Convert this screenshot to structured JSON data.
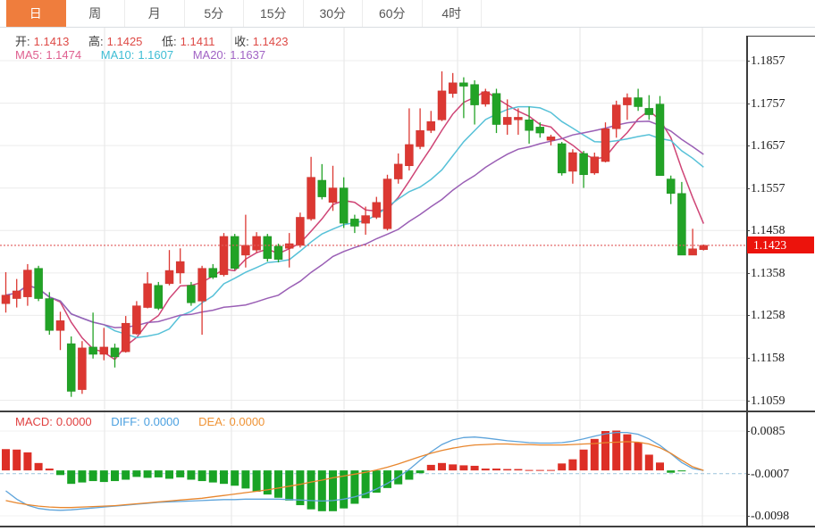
{
  "tabs": {
    "items": [
      {
        "label": "日",
        "active": true
      },
      {
        "label": "周",
        "active": false
      },
      {
        "label": "月",
        "active": false
      },
      {
        "label": "5分",
        "active": false
      },
      {
        "label": "15分",
        "active": false
      },
      {
        "label": "30分",
        "active": false
      },
      {
        "label": "60分",
        "active": false
      },
      {
        "label": "4时",
        "active": false
      }
    ],
    "active_color": "#ef7d3d"
  },
  "legend": {
    "ohlc": [
      {
        "label": "开:",
        "value": "1.1413"
      },
      {
        "label": "高:",
        "value": "1.1425"
      },
      {
        "label": "低:",
        "value": "1.1411"
      },
      {
        "label": "收:",
        "value": "1.1423"
      }
    ],
    "ohlc_value_color": "#de4a46",
    "ma": [
      {
        "label": "MA5:",
        "value": "1.1474",
        "color": "#df5f8f"
      },
      {
        "label": "MA10:",
        "value": "1.1607",
        "color": "#3ebdd4"
      },
      {
        "label": "MA20:",
        "value": "1.1637",
        "color": "#a163c4"
      }
    ],
    "macd": [
      {
        "label": "MACD:",
        "value": "0.0000",
        "color": "#e04040"
      },
      {
        "label": "DIFF:",
        "value": "0.0000",
        "color": "#4ba0e0"
      },
      {
        "label": "DEA:",
        "value": "0.0000",
        "color": "#ef9335"
      }
    ]
  },
  "axes": {
    "price": [
      "1.1857",
      "1.1757",
      "1.1657",
      "1.1557",
      "1.1458",
      "1.1358",
      "1.1258",
      "1.1158",
      "1.1059"
    ],
    "macd": [
      "0.0085",
      "-0.0007",
      "-0.0098"
    ]
  },
  "price_tag": {
    "text": "1.1423",
    "bg": "#ec130c"
  },
  "colors": {
    "up": "#dc3832",
    "down": "#22a326",
    "up_stroke": "#c8342e",
    "down_stroke": "#1d8f21",
    "ma5": "#cf4576",
    "ma10": "#57c1d8",
    "ma20": "#9a5fb5",
    "hist_up": "#dd2f26",
    "hist_down": "#19a325",
    "diff_line": "#5ea4db",
    "dea_line": "#e8862d",
    "current_price_line": "#e05a5a",
    "zero_dash_line": "#9cc3dc",
    "grid_h": "#ececec",
    "grid_v": "#e6e6e6"
  },
  "chart_data": {
    "type": "candlestick",
    "title": "",
    "legend_position": "top-left",
    "grid": true,
    "panels": [
      {
        "name": "price",
        "type": "candlestick",
        "ylim": [
          1.1059,
          1.1857
        ],
        "yticks": [
          1.1857,
          1.1757,
          1.1657,
          1.1557,
          1.1458,
          1.1358,
          1.1258,
          1.1158,
          1.1059
        ],
        "current_price": 1.1423,
        "overlays": [
          {
            "name": "MA5",
            "period": 5,
            "last": 1.1474
          },
          {
            "name": "MA10",
            "period": 10,
            "last": 1.1607
          },
          {
            "name": "MA20",
            "period": 20,
            "last": 1.1637
          }
        ],
        "candles": {
          "open": [
            1.1286,
            1.1298,
            1.1302,
            1.1369,
            1.1298,
            1.1223,
            1.1192,
            1.1084,
            1.1184,
            1.1167,
            1.1182,
            1.1173,
            1.1215,
            1.1277,
            1.1329,
            1.1333,
            1.1358,
            1.1329,
            1.1292,
            1.1369,
            1.1354,
            1.1444,
            1.14,
            1.1412,
            1.1444,
            1.1421,
            1.1416,
            1.1423,
            1.1485,
            1.1576,
            1.1524,
            1.1558,
            1.1485,
            1.1475,
            1.1489,
            1.1462,
            1.1579,
            1.161,
            1.1655,
            1.1693,
            1.1718,
            1.178,
            1.1805,
            1.1801,
            1.1755,
            1.178,
            1.1707,
            1.1718,
            1.1718,
            1.1701,
            1.167,
            1.1662,
            1.1597,
            1.1639,
            1.1593,
            1.162,
            1.1697,
            1.1753,
            1.177,
            1.1745,
            1.1755,
            1.1579,
            1.1545,
            1.14,
            1.1413
          ],
          "high": [
            1.136,
            1.1344,
            1.1379,
            1.1375,
            1.1313,
            1.1267,
            1.1209,
            1.1198,
            1.1265,
            1.1229,
            1.1192,
            1.1257,
            1.1292,
            1.136,
            1.1337,
            1.1412,
            1.1416,
            1.1337,
            1.1375,
            1.1379,
            1.1452,
            1.145,
            1.1495,
            1.1454,
            1.145,
            1.1427,
            1.1452,
            1.15,
            1.1631,
            1.1614,
            1.161,
            1.1583,
            1.1495,
            1.1514,
            1.1537,
            1.1589,
            1.1639,
            1.1745,
            1.1745,
            1.1739,
            1.1832,
            1.1828,
            1.1818,
            1.1811,
            1.1791,
            1.1791,
            1.1766,
            1.1745,
            1.1749,
            1.1712,
            1.1683,
            1.1666,
            1.1649,
            1.1645,
            1.1641,
            1.1712,
            1.1763,
            1.178,
            1.1791,
            1.1776,
            1.1774,
            1.1587,
            1.1572,
            1.1462,
            1.1425
          ],
          "low": [
            1.1265,
            1.1277,
            1.1281,
            1.1292,
            1.1213,
            1.1177,
            1.1067,
            1.1074,
            1.1157,
            1.1153,
            1.1136,
            1.1171,
            1.1213,
            1.1275,
            1.1271,
            1.1329,
            1.1333,
            1.1281,
            1.1213,
            1.1344,
            1.135,
            1.1365,
            1.1371,
            1.1406,
            1.1385,
            1.1383,
            1.1371,
            1.1418,
            1.1481,
            1.1531,
            1.1504,
            1.1464,
            1.1452,
            1.1448,
            1.1485,
            1.1458,
            1.1568,
            1.1599,
            1.1649,
            1.1687,
            1.1715,
            1.177,
            1.1722,
            1.1707,
            1.1749,
            1.1687,
            1.1683,
            1.1683,
            1.1662,
            1.1676,
            1.1658,
            1.1587,
            1.1568,
            1.1558,
            1.1589,
            1.1618,
            1.1676,
            1.1718,
            1.1739,
            1.1718,
            1.1587,
            1.152,
            1.14,
            1.14,
            1.1411
          ],
          "close": [
            1.1306,
            1.1316,
            1.1365,
            1.1298,
            1.1223,
            1.1246,
            1.108,
            1.1182,
            1.1167,
            1.1184,
            1.1161,
            1.124,
            1.1281,
            1.1333,
            1.1275,
            1.1364,
            1.1385,
            1.1288,
            1.1369,
            1.1348,
            1.1444,
            1.1369,
            1.1423,
            1.1444,
            1.1392,
            1.139,
            1.1427,
            1.1489,
            1.1583,
            1.1537,
            1.1558,
            1.1475,
            1.1468,
            1.1493,
            1.1524,
            1.1579,
            1.1614,
            1.166,
            1.1693,
            1.1714,
            1.1786,
            1.1805,
            1.1797,
            1.1753,
            1.1784,
            1.1707,
            1.1724,
            1.1724,
            1.1693,
            1.1687,
            1.1678,
            1.1593,
            1.1641,
            1.1589,
            1.1631,
            1.1697,
            1.1753,
            1.177,
            1.1749,
            1.173,
            1.1587,
            1.1545,
            1.14,
            1.1415,
            1.1423
          ]
        }
      },
      {
        "name": "macd",
        "type": "macd",
        "ylim": [
          -0.0098,
          0.0085
        ],
        "yticks": [
          0.0085,
          -0.0007,
          -0.0098
        ],
        "histogram": [
          0.0046,
          0.0045,
          0.0039,
          0.0016,
          0.0004,
          -0.001,
          -0.0029,
          -0.0026,
          -0.0023,
          -0.0025,
          -0.0023,
          -0.002,
          -0.0014,
          -0.0016,
          -0.0015,
          -0.0018,
          -0.0015,
          -0.002,
          -0.0023,
          -0.0026,
          -0.0029,
          -0.0033,
          -0.0039,
          -0.0046,
          -0.0052,
          -0.0059,
          -0.0065,
          -0.0075,
          -0.0084,
          -0.0088,
          -0.0088,
          -0.0082,
          -0.0072,
          -0.006,
          -0.0048,
          -0.0038,
          -0.003,
          -0.002,
          -0.0006,
          0.0012,
          0.0016,
          0.0013,
          0.0011,
          0.001,
          0.0004,
          0.0004,
          0.0003,
          0.0003,
          0.0001,
          0.0001,
          0.0001,
          0.0015,
          0.0024,
          0.0045,
          0.0068,
          0.0085,
          0.0086,
          0.0078,
          0.0061,
          0.0034,
          0.0017,
          -0.0005,
          -0.0002,
          0.0,
          0.0
        ],
        "diff": [
          -0.0044,
          -0.0062,
          -0.0075,
          -0.0082,
          -0.0085,
          -0.0086,
          -0.0085,
          -0.0083,
          -0.0081,
          -0.0079,
          -0.0077,
          -0.0075,
          -0.0073,
          -0.0071,
          -0.0069,
          -0.0068,
          -0.0067,
          -0.0066,
          -0.0065,
          -0.0064,
          -0.0063,
          -0.0063,
          -0.0062,
          -0.0062,
          -0.0062,
          -0.0062,
          -0.0063,
          -0.0064,
          -0.0065,
          -0.0066,
          -0.0065,
          -0.0062,
          -0.0057,
          -0.005,
          -0.004,
          -0.0028,
          -0.0014,
          0.0002,
          0.0022,
          0.004,
          0.0056,
          0.0066,
          0.0071,
          0.0072,
          0.007,
          0.0067,
          0.0064,
          0.0062,
          0.006,
          0.0059,
          0.0059,
          0.006,
          0.0063,
          0.0068,
          0.0074,
          0.0079,
          0.0082,
          0.0082,
          0.0078,
          0.0068,
          0.0054,
          0.0036,
          0.0017,
          0.0004,
          0.0
        ],
        "dea": [
          -0.0065,
          -0.007,
          -0.0074,
          -0.0077,
          -0.0079,
          -0.008,
          -0.008,
          -0.0079,
          -0.0078,
          -0.0077,
          -0.0076,
          -0.0074,
          -0.0072,
          -0.007,
          -0.0068,
          -0.0066,
          -0.0064,
          -0.0062,
          -0.006,
          -0.0057,
          -0.0054,
          -0.0051,
          -0.0048,
          -0.0045,
          -0.0042,
          -0.0038,
          -0.0034,
          -0.003,
          -0.0025,
          -0.0021,
          -0.0016,
          -0.0012,
          -0.0008,
          -0.0004,
          0.0001,
          0.0007,
          0.0014,
          0.0022,
          0.003,
          0.0037,
          0.0043,
          0.0048,
          0.0052,
          0.0055,
          0.0056,
          0.0057,
          0.0057,
          0.0056,
          0.0056,
          0.0055,
          0.0055,
          0.0055,
          0.0056,
          0.0057,
          0.0058,
          0.006,
          0.0061,
          0.0062,
          0.0061,
          0.0057,
          0.0049,
          0.0037,
          0.0022,
          0.0008,
          0.0
        ]
      }
    ]
  }
}
